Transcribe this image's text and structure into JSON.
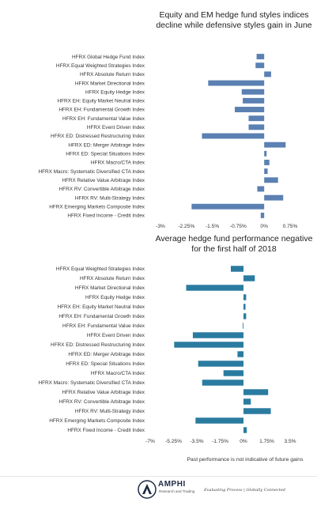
{
  "chart_data": [
    {
      "type": "bar",
      "orientation": "horizontal",
      "title": "Equity and EM hedge fund styles indices decline while defensive styles gain in June",
      "color": "#5b80b2",
      "categories": [
        "HFRX Global Hedge Fund Index",
        "HFRX Equal Weighted Strategies Index",
        "HFRX Absolute Return Index",
        "HFRX Market Directional Index",
        "HFRX Equity Hedge Index",
        "HFRX EH: Equity Market Neutral Index",
        "HFRX EH: Fundamental Growth Index",
        "HFRX EH: Fundamental Value Index",
        "HFRX Event Driven Index",
        "HFRX ED: Distressed Restructuring Index",
        "HFRX ED: Merger Arbitrage Index",
        "HFRX ED: Special Situations Index",
        "HFRX Macro/CTA Index",
        "HFRX Macro: Systematic Diversified CTA Index",
        "HFRX Relative Value Arbitrage Index",
        "HFRX RV: Convertible Arbitrage Index",
        "HFRX RV: Multi-Strategy Index",
        "HFRX Emerging Markets Composite Index",
        "HFRX Fixed Income - Credit Index"
      ],
      "values": [
        -0.22,
        -0.25,
        0.2,
        -1.62,
        -0.65,
        -0.62,
        -0.85,
        -0.45,
        -0.45,
        -1.8,
        0.62,
        0.07,
        0.15,
        0.1,
        0.4,
        -0.2,
        0.55,
        -2.1,
        -0.1
      ],
      "xlim": [
        -3,
        0.75
      ],
      "xticks": [
        "-3%",
        "-2.25%",
        "-1.5%",
        "-0.75%",
        "0%",
        "0.75%"
      ],
      "xtick_values": [
        -3,
        -2.25,
        -1.5,
        -0.75,
        0,
        0.75
      ]
    },
    {
      "type": "bar",
      "orientation": "horizontal",
      "title": "Average hedge fund performance negative for the first half of 2018",
      "color": "#2a7ba0",
      "categories": [
        "HFRX Equal Weighted Strategies Index",
        "HFRX Absolute Return Index",
        "HFRX Market Directional Index",
        "HFRX Equity Hedge Index",
        "HFRX EH: Equity Market Neutral Index",
        "HFRX EH: Fundamental Growth Index",
        "HFRX EH: Fundamental Value Index",
        "HFRX Event Driven Index",
        "HFRX ED: Distressed Restructuring Index",
        "HFRX ED: Merger Arbitrage Index",
        "HFRX ED: Special Situations Index",
        "HFRX Macro/CTA Index",
        "HFRX Macro: Systematic Diversified CTA Index",
        "HFRX Relative Value Arbitrage Index",
        "HFRX RV: Convertible Arbitrage Index",
        "HFRX RV: Multi-Strategy Index",
        "HFRX Emerging Markets Composite Index",
        "HFRX Fixed Income - Credit Index"
      ],
      "values": [
        -0.95,
        0.85,
        -4.3,
        0.2,
        0.15,
        0.2,
        -0.05,
        -3.8,
        -5.2,
        -0.45,
        -3.4,
        -1.5,
        -3.1,
        1.85,
        0.55,
        2.05,
        -3.6,
        0.25
      ],
      "xlim": [
        -7,
        3.5
      ],
      "xticks": [
        "-7%",
        "-5.25%",
        "-3.5%",
        "-1.75%",
        "0%",
        "1.75%",
        "3.5%"
      ],
      "xtick_values": [
        -7,
        -5.25,
        -3.5,
        -1.75,
        0,
        1.75,
        3.5
      ]
    }
  ],
  "footer": {
    "disclaimer": "Past performance is not indicative of future gains",
    "brand": "AMPHI",
    "brand_sub": "Research and Trading",
    "tagline": "Evaluating Process | Globally Connected",
    "brand_color": "#1e2a44"
  }
}
